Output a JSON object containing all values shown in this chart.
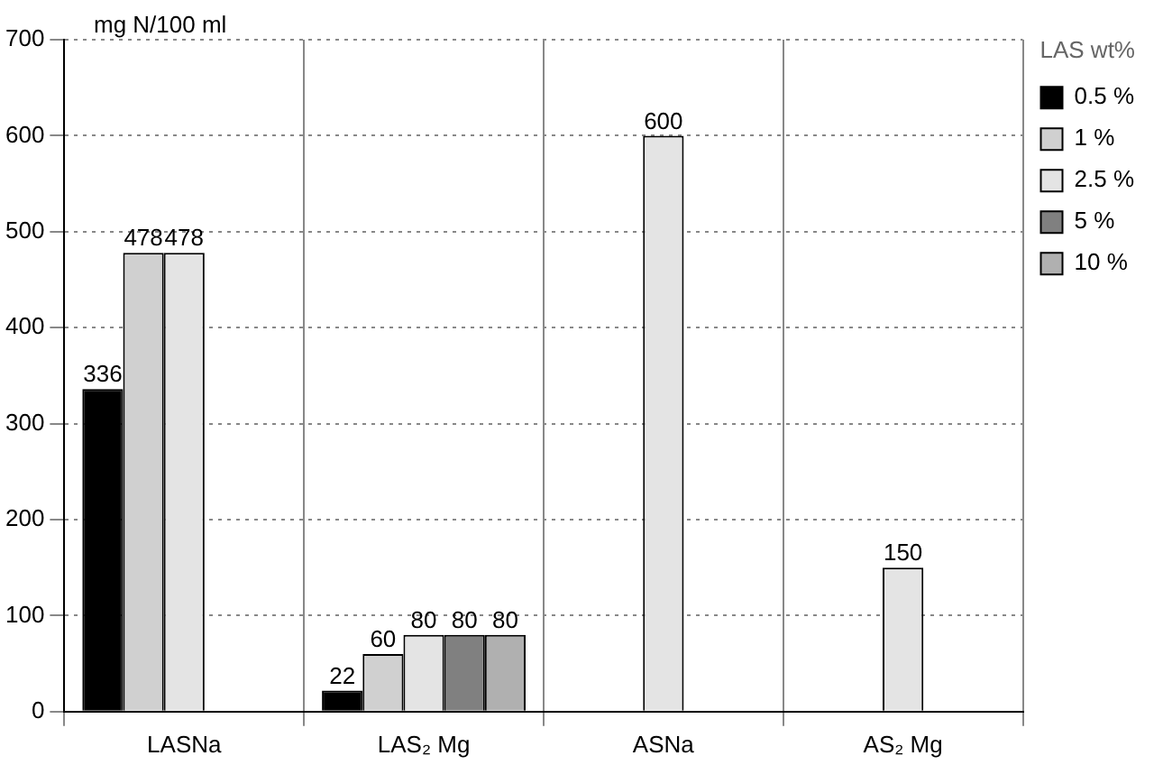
{
  "chart_data": {
    "type": "bar",
    "ylabel": "mg N/100 ml",
    "legend_title": "LAS wt%",
    "categories": [
      "LASNa",
      "LAS₂ Mg",
      "ASNa",
      "AS₂ Mg"
    ],
    "series": [
      {
        "name": "0.5 %",
        "color": "#000000",
        "values": [
          336,
          22,
          null,
          null
        ]
      },
      {
        "name": "1 %",
        "color": "#d0d0d0",
        "values": [
          478,
          60,
          null,
          null
        ]
      },
      {
        "name": "2.5 %",
        "color": "#e4e4e4",
        "values": [
          478,
          80,
          600,
          150
        ]
      },
      {
        "name": "5 %",
        "color": "#808080",
        "values": [
          null,
          80,
          null,
          null
        ]
      },
      {
        "name": "10 %",
        "color": "#b0b0b0",
        "values": [
          null,
          80,
          null,
          null
        ]
      }
    ],
    "ylim": [
      0,
      700
    ],
    "yticks": [
      0,
      100,
      200,
      300,
      400,
      500,
      600,
      700
    ],
    "grid": true,
    "legend": "top right",
    "data_labels": true
  }
}
